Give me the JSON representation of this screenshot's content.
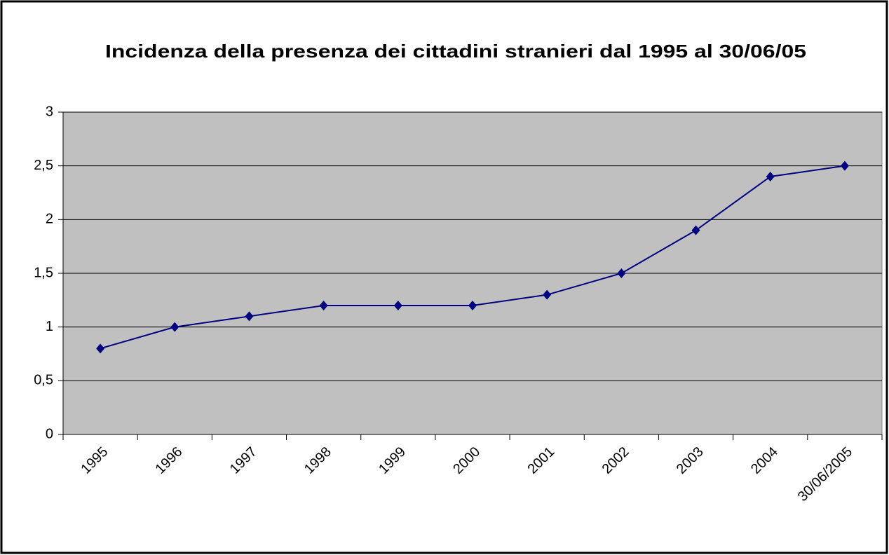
{
  "chart_data": {
    "type": "line",
    "title": "Incidenza della presenza dei cittadini stranieri dal 1995 al 30/06/05",
    "categories": [
      "1995",
      "1996",
      "1997",
      "1998",
      "1999",
      "2000",
      "2001",
      "2002",
      "2003",
      "2004",
      "30/06/2005"
    ],
    "values": [
      0.8,
      1.0,
      1.1,
      1.2,
      1.2,
      1.2,
      1.3,
      1.5,
      1.9,
      2.4,
      2.5
    ],
    "color": "#000080",
    "ylim": [
      0,
      3
    ],
    "yticks": [
      0,
      {
        "value": 0.5,
        "label": "0,5"
      },
      1,
      {
        "value": 1.5,
        "label": "1,5"
      },
      2,
      {
        "value": 2.5,
        "label": "2,5"
      },
      3
    ],
    "grid": true
  }
}
